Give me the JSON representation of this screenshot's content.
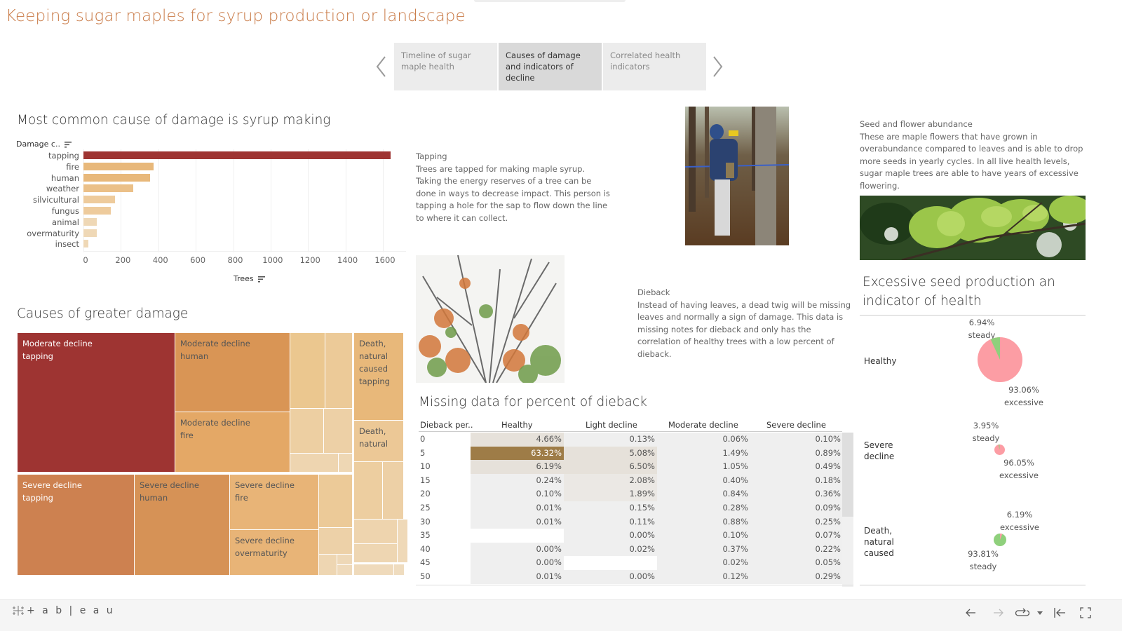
{
  "title": "Keeping sugar maples for syrup production or landscape",
  "story_nav": {
    "prev_icon": "chevron-left-icon",
    "next_icon": "chevron-right-icon",
    "tabs": [
      {
        "label": "Timeline of sugar maple health",
        "active": false
      },
      {
        "label": "Causes of damage and indicators of decline",
        "active": true
      },
      {
        "label": "Correlated health indicators",
        "active": false
      }
    ]
  },
  "bar_section": {
    "title": "Most common cause of damage is syrup making",
    "y_header": "Damage c..",
    "x_title": "Trees",
    "ticks": [
      "0",
      "200",
      "400",
      "600",
      "800",
      "1000",
      "1200",
      "1400",
      "1600"
    ]
  },
  "chart_data": [
    {
      "type": "bar",
      "orientation": "horizontal",
      "title": "Most common cause of damage is syrup making",
      "ylabel": "Damage c..",
      "xlabel": "Trees",
      "categories": [
        "tapping",
        "fire",
        "human",
        "weather",
        "silvicultural",
        "fungus",
        "animal",
        "overmaturity",
        "insect"
      ],
      "values": [
        1640,
        375,
        355,
        265,
        170,
        145,
        73,
        70,
        25
      ],
      "colors": [
        "#9e3432",
        "#e8b87a",
        "#e8b87a",
        "#ebc088",
        "#eecb9c",
        "#eecb9c",
        "#efd8b6",
        "#efd8b6",
        "#efd8b6"
      ],
      "xlim": [
        0,
        1700
      ],
      "grid": true
    },
    {
      "type": "treemap",
      "title": "Causes of greater damage",
      "labeled_cells": [
        {
          "label": "Moderate decline tapping",
          "color": "#9e3432"
        },
        {
          "label": "Moderate decline human",
          "color": "#d99555"
        },
        {
          "label": "Moderate decline fire",
          "color": "#e4a866"
        },
        {
          "label": "Death, natural caused tapping",
          "color": "#e8b87a"
        },
        {
          "label": "Death, natural",
          "color": "#ecc896"
        },
        {
          "label": "Severe decline tapping",
          "color": "#cd8150"
        },
        {
          "label": "Severe decline human",
          "color": "#d69256"
        },
        {
          "label": "Severe decline fire",
          "color": "#e8b477"
        },
        {
          "label": "Severe decline overmaturity",
          "color": "#e8b477"
        }
      ]
    },
    {
      "type": "table",
      "title": "Missing data for percent of dieback",
      "columns": [
        "Dieback per..",
        "Healthy",
        "Light decline",
        "Moderate decline",
        "Severe decline"
      ],
      "rows": [
        [
          "0",
          "4.66%",
          "0.13%",
          "0.06%",
          "0.10%"
        ],
        [
          "5",
          "63.32%",
          "5.08%",
          "1.49%",
          "0.89%"
        ],
        [
          "10",
          "6.19%",
          "6.50%",
          "1.05%",
          "0.49%"
        ],
        [
          "15",
          "0.24%",
          "2.08%",
          "0.40%",
          "0.18%"
        ],
        [
          "20",
          "0.10%",
          "1.89%",
          "0.84%",
          "0.36%"
        ],
        [
          "25",
          "0.01%",
          "0.15%",
          "0.28%",
          "0.09%"
        ],
        [
          "30",
          "0.01%",
          "0.11%",
          "0.88%",
          "0.25%"
        ],
        [
          "35",
          "",
          "0.00%",
          "0.10%",
          "0.07%"
        ],
        [
          "40",
          "0.00%",
          "0.02%",
          "0.37%",
          "0.22%"
        ],
        [
          "45",
          "0.00%",
          "",
          "0.02%",
          "0.05%"
        ],
        [
          "50",
          "0.01%",
          "0.00%",
          "0.12%",
          "0.29%"
        ]
      ]
    },
    {
      "type": "pie",
      "title": "Excessive seed production an indicator of health",
      "series": [
        {
          "name": "Healthy",
          "slices": [
            {
              "label": "steady",
              "value": 6.94,
              "color": "#8fd07c"
            },
            {
              "label": "excessive",
              "value": 93.06,
              "color": "#fc9da4"
            }
          ]
        },
        {
          "name": "Severe decline",
          "slices": [
            {
              "label": "steady",
              "value": 3.95,
              "color": "#8fd07c"
            },
            {
              "label": "excessive",
              "value": 96.05,
              "color": "#fc9da4"
            }
          ]
        },
        {
          "name": "Death, natural caused",
          "slices": [
            {
              "label": "excessive",
              "value": 6.19,
              "color": "#fc9da4"
            },
            {
              "label": "steady",
              "value": 93.81,
              "color": "#8fd07c"
            }
          ]
        }
      ]
    }
  ],
  "treemap_section": {
    "title": "Causes of greater damage",
    "cells": {
      "mod_tapping": [
        "Moderate decline",
        "tapping"
      ],
      "mod_human": [
        "Moderate decline",
        "human"
      ],
      "mod_fire": [
        "Moderate decline",
        "fire"
      ],
      "death_tapping": [
        "Death,",
        "natural",
        "caused",
        "tapping"
      ],
      "death_natural": [
        "Death,",
        "natural"
      ],
      "sev_tapping": [
        "Severe decline",
        "tapping"
      ],
      "sev_human": [
        "Severe decline",
        "human"
      ],
      "sev_fire": [
        "Severe decline",
        "fire"
      ],
      "sev_overmaturity": [
        "Severe decline",
        "overmaturity"
      ]
    }
  },
  "tapping_text": {
    "heading": "Tapping",
    "body": "Trees are tapped for making maple syrup. Taking the energy reserves of a tree can be done in ways to decrease impact. This person is tapping a hole for the sap to flow down the line to where it can collect."
  },
  "dieback_text": {
    "heading": "Dieback",
    "body": "Instead of having leaves, a dead twig will be missing leaves and normally a sign of damage. This data is missing notes for dieback and only has the correlation of healthy trees with a low percent of dieback."
  },
  "seed_text": {
    "heading": "Seed and flower abundance",
    "body": "These are maple flowers that have grown in overabundance compared to leaves and is able to drop more seeds in yearly cycles. In all live health levels, sugar maple trees  are able to have years of excessive flowering."
  },
  "table_section": {
    "title": "Missing data for percent of dieback",
    "headers": [
      "Dieback per..",
      "Healthy",
      "Light decline",
      "Moderate decline",
      "Severe decline"
    ]
  },
  "pie_section": {
    "title": "Excessive seed production an indicator of health",
    "rows": [
      {
        "label": "Healthy",
        "top_pct": "6.94%",
        "top_name": "steady",
        "bottom_pct": "93.06%",
        "bottom_name": "excessive"
      },
      {
        "label": "Severe decline",
        "top_pct": "3.95%",
        "top_name": "steady",
        "bottom_pct": "96.05%",
        "bottom_name": "excessive"
      },
      {
        "label": "Death, natural caused",
        "top_pct": "6.19%",
        "top_name": "excessive",
        "bottom_pct": "93.81%",
        "bottom_name": "steady"
      }
    ]
  },
  "footer": {
    "logo_text": "+ a b | e a u",
    "icons": [
      "undo-icon",
      "redo-icon",
      "revert-icon",
      "revert-dropdown-icon",
      "reset-icon",
      "fullscreen-icon"
    ]
  },
  "colors": {
    "title": "#c97a46",
    "primary_bar": "#9e3432",
    "steady": "#8fd07c",
    "excessive": "#fc9da4",
    "heat_max": "#9e7c47"
  }
}
